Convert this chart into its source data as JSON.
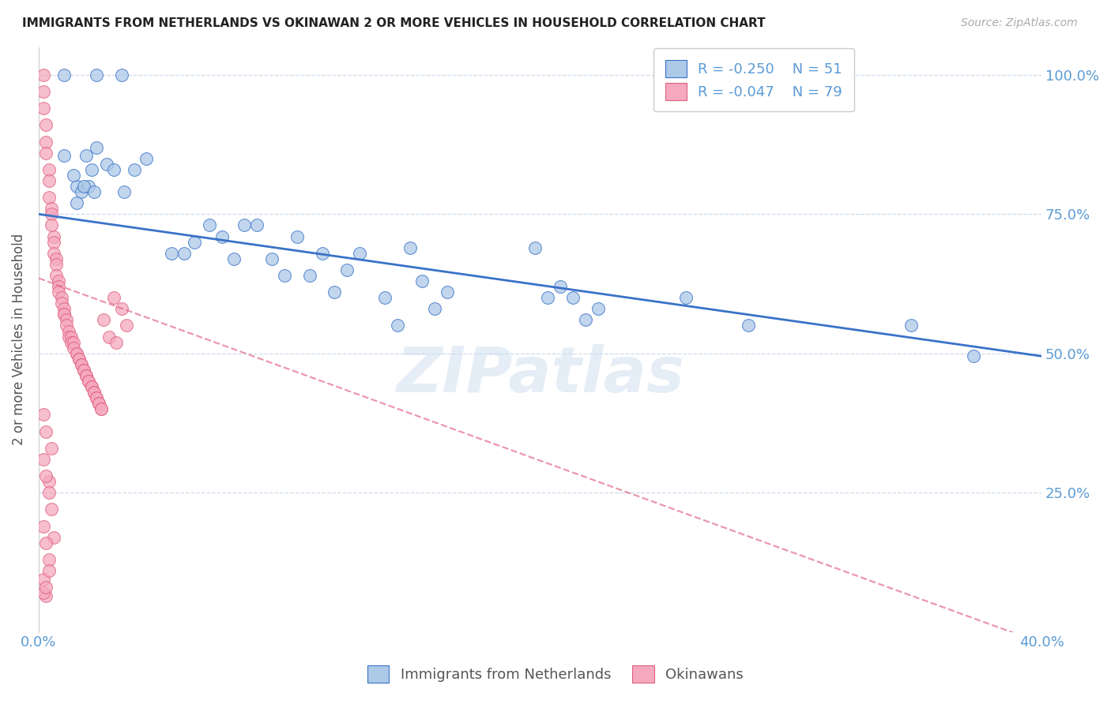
{
  "title": "IMMIGRANTS FROM NETHERLANDS VS OKINAWAN 2 OR MORE VEHICLES IN HOUSEHOLD CORRELATION CHART",
  "source": "Source: ZipAtlas.com",
  "ylabel": "2 or more Vehicles in Household",
  "xaxis_label_blue": "Immigrants from Netherlands",
  "xaxis_label_pink": "Okinawans",
  "legend_blue_r": "R = -0.250",
  "legend_blue_n": "N = 51",
  "legend_pink_r": "R = -0.047",
  "legend_pink_n": "N = 79",
  "xlim": [
    0.0,
    0.4
  ],
  "ylim": [
    0.0,
    1.05
  ],
  "blue_color": "#adc9e8",
  "blue_line_color": "#3a72c8",
  "pink_color": "#f5a8be",
  "pink_line_color": "#e06080",
  "axis_color": "#5b9bd5",
  "grid_color": "#c8d8ea",
  "watermark": "ZIPatlas",
  "blue_line_x0": 0.0,
  "blue_line_y0": 0.75,
  "blue_line_x1": 0.4,
  "blue_line_y1": 0.495,
  "pink_line_x0": 0.0,
  "pink_line_y0": 0.635,
  "pink_line_x1": 0.4,
  "pink_line_y1": -0.02,
  "blue_x": [
    0.01,
    0.023,
    0.033,
    0.01,
    0.023,
    0.015,
    0.019,
    0.017,
    0.02,
    0.014,
    0.015,
    0.018,
    0.021,
    0.022,
    0.027,
    0.03,
    0.034,
    0.038,
    0.043,
    0.053,
    0.058,
    0.062,
    0.068,
    0.073,
    0.078,
    0.082,
    0.087,
    0.093,
    0.098,
    0.103,
    0.108,
    0.113,
    0.118,
    0.123,
    0.128,
    0.138,
    0.143,
    0.148,
    0.153,
    0.158,
    0.163,
    0.198,
    0.203,
    0.208,
    0.213,
    0.218,
    0.223,
    0.258,
    0.283,
    0.348,
    0.373
  ],
  "blue_y": [
    1.0,
    1.0,
    1.0,
    0.855,
    0.87,
    0.8,
    0.855,
    0.79,
    0.8,
    0.82,
    0.77,
    0.8,
    0.83,
    0.79,
    0.84,
    0.83,
    0.79,
    0.83,
    0.85,
    0.68,
    0.68,
    0.7,
    0.73,
    0.71,
    0.67,
    0.73,
    0.73,
    0.67,
    0.64,
    0.71,
    0.64,
    0.68,
    0.61,
    0.65,
    0.68,
    0.6,
    0.55,
    0.69,
    0.63,
    0.58,
    0.61,
    0.69,
    0.6,
    0.62,
    0.6,
    0.56,
    0.58,
    0.6,
    0.55,
    0.55,
    0.495
  ],
  "pink_x": [
    0.002,
    0.002,
    0.002,
    0.003,
    0.003,
    0.003,
    0.004,
    0.004,
    0.004,
    0.005,
    0.005,
    0.005,
    0.006,
    0.006,
    0.006,
    0.007,
    0.007,
    0.007,
    0.008,
    0.008,
    0.008,
    0.009,
    0.009,
    0.01,
    0.01,
    0.01,
    0.011,
    0.011,
    0.012,
    0.012,
    0.013,
    0.013,
    0.014,
    0.014,
    0.015,
    0.015,
    0.016,
    0.016,
    0.017,
    0.017,
    0.018,
    0.018,
    0.019,
    0.019,
    0.02,
    0.02,
    0.021,
    0.021,
    0.022,
    0.022,
    0.023,
    0.023,
    0.024,
    0.024,
    0.025,
    0.025,
    0.026,
    0.028,
    0.03,
    0.031,
    0.033,
    0.035,
    0.004,
    0.006,
    0.002,
    0.003,
    0.005,
    0.002,
    0.003,
    0.004,
    0.005,
    0.002,
    0.003,
    0.004,
    0.002,
    0.003,
    0.004,
    0.002,
    0.003
  ],
  "pink_y": [
    1.0,
    0.97,
    0.94,
    0.91,
    0.88,
    0.86,
    0.83,
    0.81,
    0.78,
    0.76,
    0.75,
    0.73,
    0.71,
    0.7,
    0.68,
    0.67,
    0.66,
    0.64,
    0.63,
    0.62,
    0.61,
    0.6,
    0.59,
    0.58,
    0.57,
    0.57,
    0.56,
    0.55,
    0.54,
    0.53,
    0.53,
    0.52,
    0.52,
    0.51,
    0.5,
    0.5,
    0.49,
    0.49,
    0.48,
    0.48,
    0.47,
    0.47,
    0.46,
    0.46,
    0.45,
    0.45,
    0.44,
    0.44,
    0.43,
    0.43,
    0.42,
    0.42,
    0.41,
    0.41,
    0.4,
    0.4,
    0.56,
    0.53,
    0.6,
    0.52,
    0.58,
    0.55,
    0.27,
    0.17,
    0.39,
    0.36,
    0.33,
    0.31,
    0.28,
    0.25,
    0.22,
    0.19,
    0.16,
    0.13,
    0.095,
    0.065,
    0.11,
    0.07,
    0.08
  ]
}
